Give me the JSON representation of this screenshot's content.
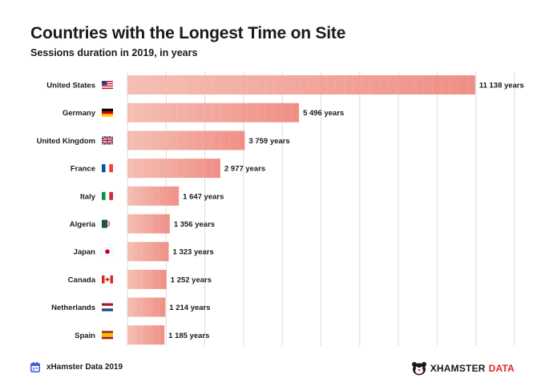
{
  "chart_data": {
    "type": "bar",
    "orientation": "horizontal",
    "title": "Countries with the Longest Time on Site",
    "subtitle": "Sessions duration in 2019, in years",
    "categories": [
      "United States",
      "Germany",
      "United Kingdom",
      "France",
      "Italy",
      "Algeria",
      "Japan",
      "Canada",
      "Netherlands",
      "Spain"
    ],
    "flags": [
      "us-flag-icon",
      "de-flag-icon",
      "gb-flag-icon",
      "fr-flag-icon",
      "it-flag-icon",
      "dz-flag-icon",
      "jp-flag-icon",
      "ca-flag-icon",
      "nl-flag-icon",
      "es-flag-icon"
    ],
    "values": [
      11138,
      5496,
      3759,
      2977,
      1647,
      1356,
      1323,
      1252,
      1214,
      1185
    ],
    "value_labels": [
      "11 138 years",
      "5 496 years",
      "3 759 years",
      "2 977 years",
      "1 647 years",
      "1 356 years",
      "1 323 years",
      "1 252 years",
      "1 214 years",
      "1 185 years"
    ],
    "xlim": [
      0,
      12400
    ],
    "grid": true,
    "bar_color_start": "#f5bfb3",
    "bar_color_end": "#ef8f86"
  },
  "footer": {
    "source": "xHamster Data 2019",
    "brand_main": "XHAMSTER",
    "brand_accent": "DATA"
  }
}
